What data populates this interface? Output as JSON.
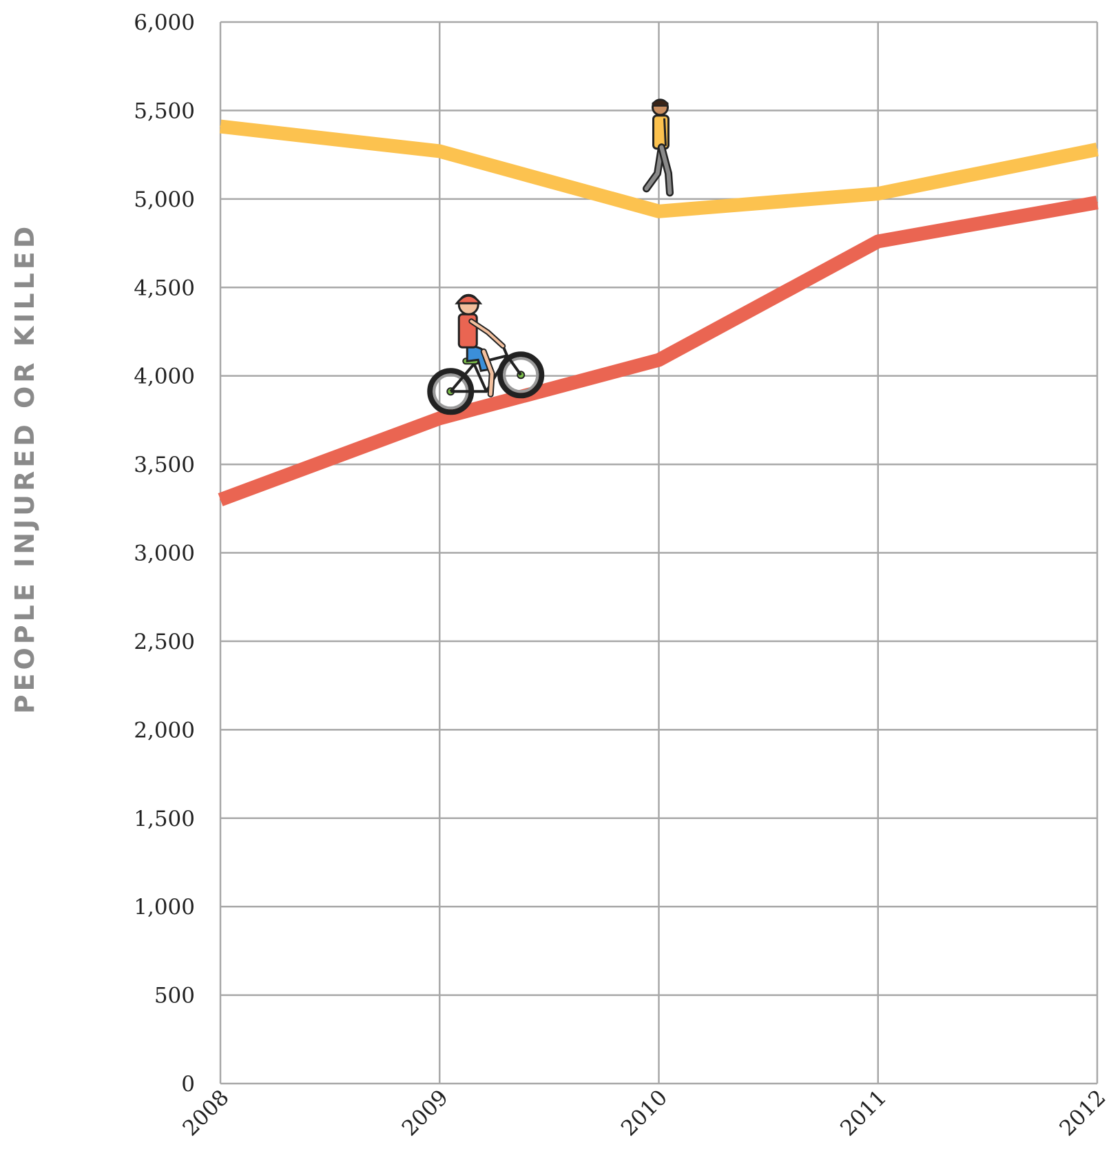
{
  "chart_data": {
    "type": "line",
    "title": "",
    "xlabel": "",
    "ylabel": "PEOPLE INJURED OR KILLED",
    "categories": [
      "2008",
      "2009",
      "2010",
      "2011",
      "2012"
    ],
    "yticks": [
      "0",
      "500",
      "1,000",
      "1,500",
      "2,000",
      "2,500",
      "3,000",
      "3,500",
      "4,000",
      "4,500",
      "5,000",
      "5,500",
      "6,000"
    ],
    "ytick_values": [
      0,
      500,
      1000,
      1500,
      2000,
      2500,
      3000,
      3500,
      4000,
      4500,
      5000,
      5500,
      6000
    ],
    "ylim": [
      0,
      6000
    ],
    "grid": true,
    "legend": "none",
    "series": [
      {
        "icon": "pedestrian-icon",
        "color": "#fcc24f",
        "values": [
          5410,
          5270,
          4930,
          5030,
          5280
        ]
      },
      {
        "icon": "cyclist-icon",
        "color": "#ea6552",
        "values": [
          3300,
          3760,
          4090,
          4760,
          4980
        ]
      }
    ],
    "colors": {
      "grid": "#a8a8a8",
      "tick_text": "#222222",
      "axis_title": "#8a8a8a"
    }
  }
}
